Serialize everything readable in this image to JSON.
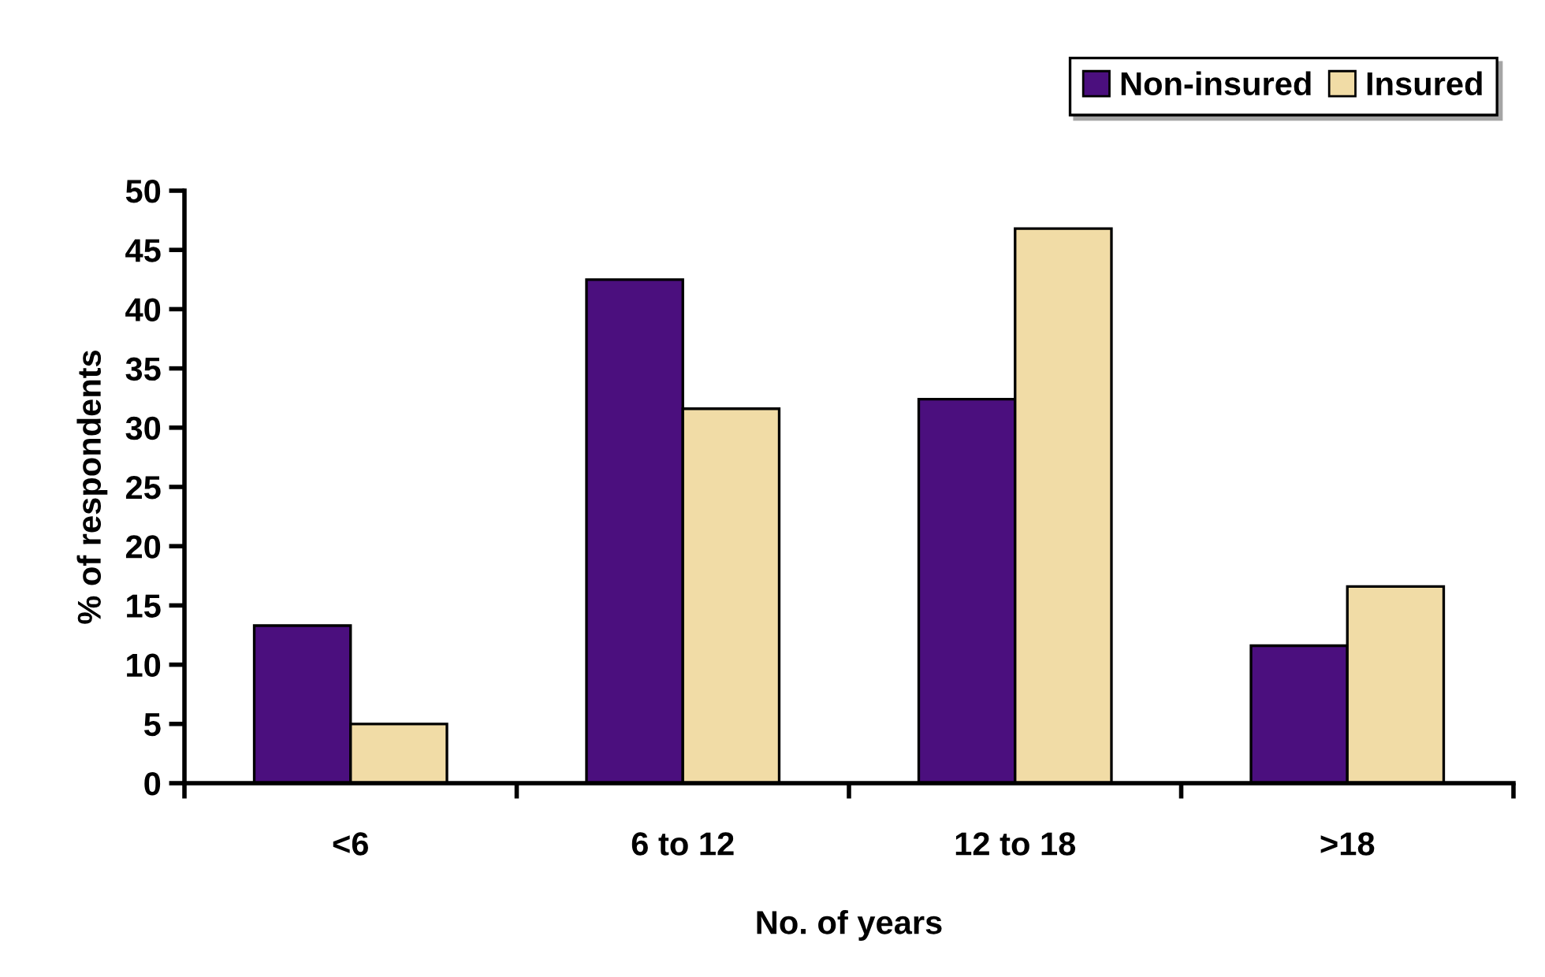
{
  "chart_data": {
    "type": "bar",
    "xlabel": "No. of years",
    "ylabel": "% of respondents",
    "categories": [
      "<6",
      "6 to 12",
      "12 to 18",
      ">18"
    ],
    "series": [
      {
        "name": "Non-insured",
        "color": "#4b0f7e",
        "values": [
          13.3,
          42.5,
          32.4,
          11.6
        ]
      },
      {
        "name": "Insured",
        "color": "#f1dca6",
        "values": [
          5.0,
          31.6,
          46.8,
          16.6
        ]
      }
    ],
    "ylim": [
      0,
      50
    ],
    "yticks": [
      0,
      5,
      10,
      15,
      20,
      25,
      30,
      35,
      40,
      45,
      50
    ],
    "grid": false,
    "legend": "top right"
  }
}
